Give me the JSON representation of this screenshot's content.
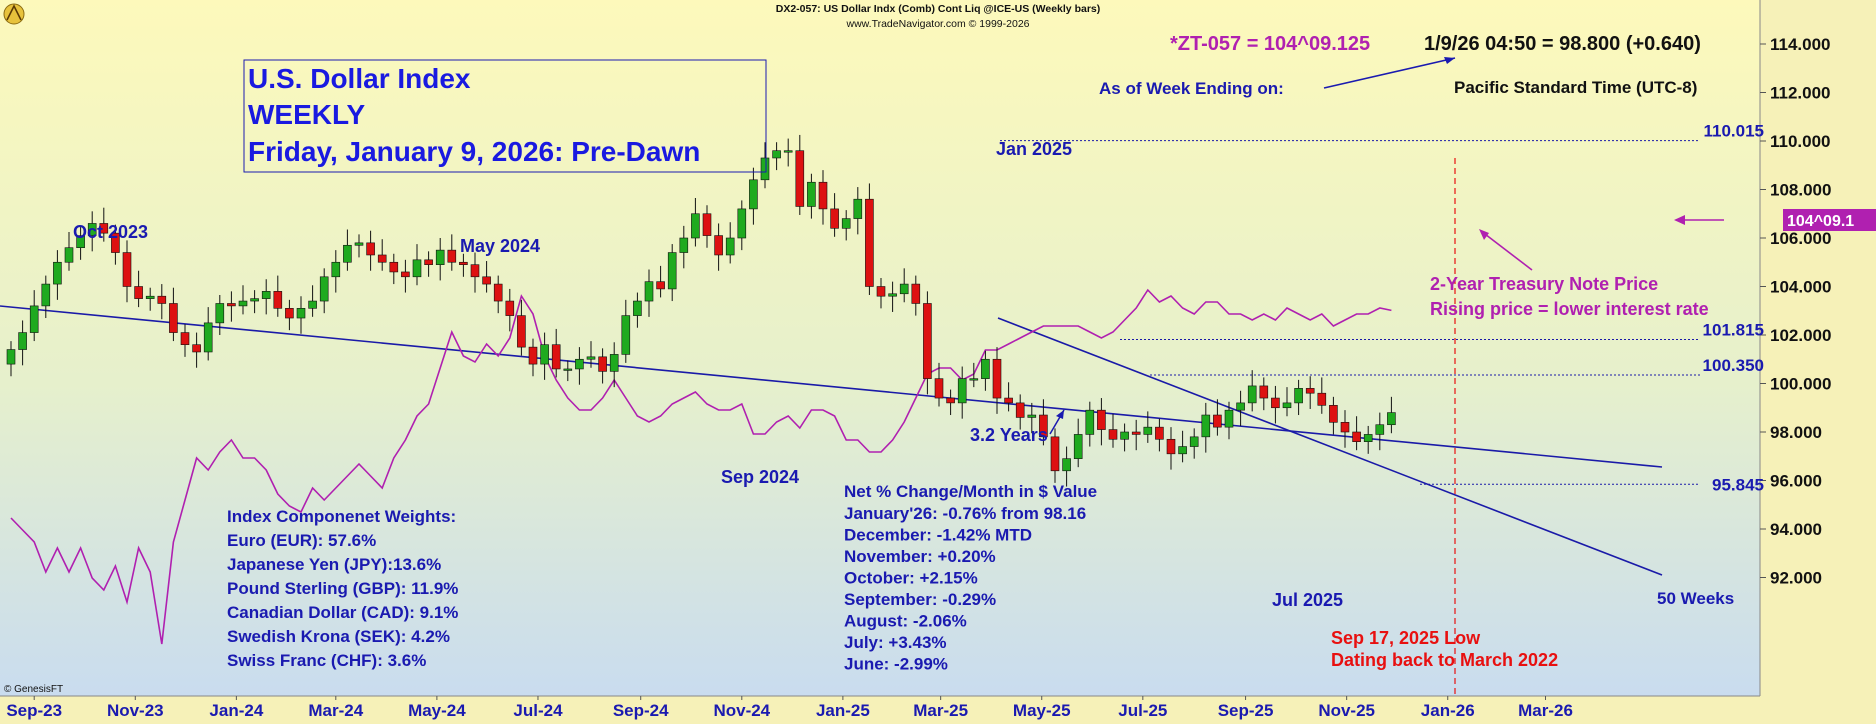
{
  "header": {
    "line1": "DX2-057:  US Dollar Indx (Comb) Cont Liq @ICE-US  (Weekly bars)",
    "line2": "www.TradeNavigator.com © 1999-2026"
  },
  "title_box": {
    "line1": "U.S. Dollar Index",
    "line2": "WEEKLY",
    "line3": "Friday, January 9, 2026: Pre-Dawn"
  },
  "quote": {
    "zt": "*ZT-057 = 104^09.125",
    "dx": "1/9/26 04:50 = 98.800 (+0.640)",
    "as_of": "As of Week Ending on:",
    "tz": "Pacific Standard Time (UTC-8)"
  },
  "annotations": {
    "oct2023": "Oct 2023",
    "may2024": "May 2024",
    "sep2024": "Sep 2024",
    "jan2025": "Jan 2025",
    "jul2025": "Jul 2025",
    "years": "3.2 Years",
    "weeks": "50 Weeks",
    "low1": "Sep 17, 2025 Low",
    "low2": "Dating back to March 2022",
    "tn1": "2-Year Treasury Note Price",
    "tn2": "Rising price = lower interest rate",
    "tn_tag": "104^09.1",
    "copyright": "© GenesisFT"
  },
  "weights": {
    "title": "Index Componenet Weights:",
    "items": [
      "Euro (EUR): 57.6%",
      "Japanese Yen (JPY):13.6%",
      "Pound Sterling (GBP): 11.9%",
      "Canadian Dollar (CAD): 9.1%",
      "Swedish Krona (SEK): 4.2%",
      "Swiss Franc (CHF): 3.6%"
    ]
  },
  "monthly": {
    "title": "Net % Change/Month in $ Value",
    "items": [
      "January'26: -0.76% from 98.16",
      "December: -1.42% MTD",
      "November: +0.20%",
      "October: +2.15%",
      "September: -0.29%",
      "August: -2.06%",
      "July: +3.43%",
      "June: -2.99%"
    ]
  },
  "levels": [
    {
      "value": 110.015,
      "label": "110.015"
    },
    {
      "value": 101.815,
      "label": "101.815"
    },
    {
      "value": 100.35,
      "label": "100.350"
    },
    {
      "value": 95.845,
      "label": "95.845"
    }
  ],
  "colors": {
    "up": "#1faa1f",
    "down": "#dd1111",
    "trend": "#1a1aa8",
    "tnote": "#b020b0",
    "label": "#1a1ab0",
    "low": "#e81010"
  },
  "chart_data": {
    "type": "candlestick",
    "title": "US Dollar Indx (Comb) Cont Liq @ICE-US (Weekly bars)",
    "ylim": [
      92,
      114.6
    ],
    "yticks": [
      "114.000",
      "112.000",
      "110.000",
      "108.000",
      "106.000",
      "104.000",
      "102.000",
      "100.000",
      "98.000",
      "96.000",
      "94.000",
      "92.000"
    ],
    "xticks": [
      "Sep-23",
      "Nov-23",
      "Jan-24",
      "Mar-24",
      "May-24",
      "Jul-24",
      "Sep-24",
      "Nov-24",
      "Jan-25",
      "Mar-25",
      "May-25",
      "Jul-25",
      "Sep-25",
      "Nov-25",
      "Jan-26",
      "Mar-26"
    ],
    "x_start": "2023-08-18",
    "close": [
      101.4,
      102.1,
      103.2,
      104.1,
      105.0,
      105.6,
      106.1,
      106.6,
      106.2,
      105.4,
      104.0,
      103.5,
      103.6,
      103.3,
      102.1,
      101.6,
      101.3,
      102.5,
      103.3,
      103.2,
      103.4,
      103.5,
      103.8,
      103.1,
      102.7,
      103.1,
      103.4,
      104.4,
      105.0,
      105.7,
      105.8,
      105.3,
      105.0,
      104.6,
      104.4,
      105.1,
      104.9,
      105.5,
      105.0,
      104.9,
      104.4,
      104.1,
      103.4,
      102.8,
      101.5,
      100.8,
      101.6,
      100.6,
      100.6,
      101.0,
      101.1,
      100.5,
      101.2,
      102.8,
      103.4,
      104.2,
      103.9,
      105.4,
      106.0,
      107.0,
      106.1,
      105.3,
      106.0,
      107.2,
      108.4,
      109.3,
      109.6,
      109.6,
      107.3,
      108.3,
      107.2,
      106.4,
      106.8,
      107.6,
      104.0,
      103.6,
      103.7,
      104.1,
      103.3,
      100.2,
      99.4,
      99.2,
      100.2,
      100.2,
      101.0,
      99.4,
      99.2,
      98.6,
      98.7,
      97.8,
      96.4,
      96.9,
      97.9,
      98.9,
      98.1,
      97.7,
      98.0,
      97.9,
      98.2,
      97.7,
      97.1,
      97.4,
      97.8,
      98.7,
      98.2,
      98.9,
      99.2,
      99.9,
      99.4,
      99.0,
      99.2,
      99.8,
      99.6,
      99.1,
      98.4,
      98.0,
      97.6,
      97.9,
      98.3,
      98.8
    ],
    "tnote_price": [
      103.05,
      102.95,
      102.85,
      102.6,
      102.8,
      102.6,
      102.8,
      102.55,
      102.45,
      102.65,
      102.35,
      102.8,
      102.6,
      102.0,
      102.85,
      103.2,
      103.55,
      103.45,
      103.6,
      103.7,
      103.55,
      103.55,
      103.45,
      103.25,
      103.15,
      103.1,
      103.3,
      103.2,
      103.3,
      103.4,
      103.5,
      103.4,
      103.3,
      103.55,
      103.7,
      103.9,
      104.0,
      104.3,
      104.6,
      104.4,
      104.35,
      104.5,
      104.4,
      104.55,
      104.9,
      104.75,
      104.4,
      104.2,
      104.05,
      103.95,
      103.95,
      104.05,
      104.2,
      104.05,
      103.9,
      103.85,
      103.9,
      104.0,
      104.05,
      104.1,
      104.0,
      103.95,
      103.95,
      104.0,
      103.75,
      103.75,
      103.85,
      103.9,
      103.8,
      103.95,
      103.95,
      103.9,
      103.7,
      103.7,
      103.6,
      103.6,
      103.7,
      103.85,
      104.05,
      104.25,
      104.3,
      104.3,
      104.2,
      104.25,
      104.45,
      104.45,
      104.5,
      104.55,
      104.6,
      104.65,
      104.65,
      104.65,
      104.65,
      104.6,
      104.55,
      104.6,
      104.7,
      104.8,
      104.95,
      104.85,
      104.9,
      104.8,
      104.75,
      104.85,
      104.85,
      104.75,
      104.75,
      104.7,
      104.75,
      104.7,
      104.8,
      104.75,
      104.7,
      104.75,
      104.65,
      104.7,
      104.75,
      104.75,
      104.8,
      104.78
    ]
  }
}
